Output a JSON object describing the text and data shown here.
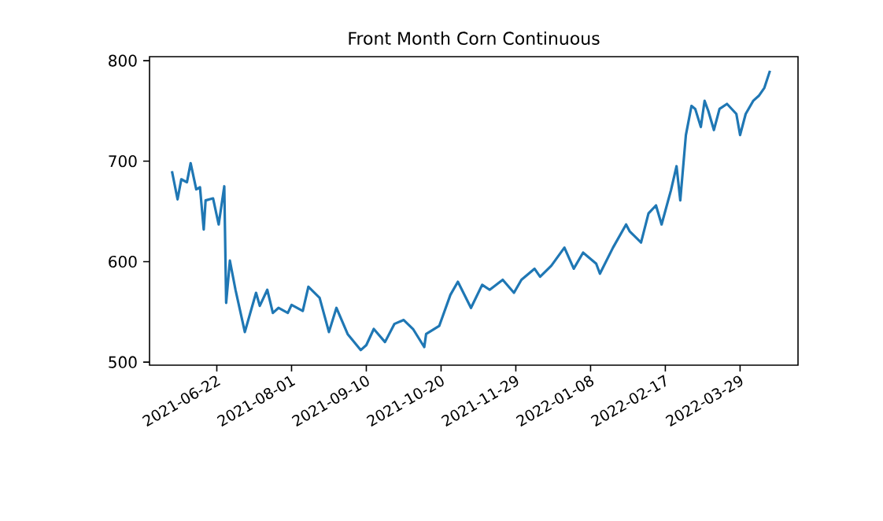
{
  "chart_data": {
    "type": "line",
    "title": "Front Month Corn Continuous",
    "x": [
      "2021-05-29",
      "2021-06-01",
      "2021-06-03",
      "2021-06-06",
      "2021-06-08",
      "2021-06-11",
      "2021-06-13",
      "2021-06-15",
      "2021-06-16",
      "2021-06-20",
      "2021-06-23",
      "2021-06-26",
      "2021-06-27",
      "2021-06-29",
      "2021-07-02",
      "2021-07-07",
      "2021-07-13",
      "2021-07-15",
      "2021-07-19",
      "2021-07-22",
      "2021-07-25",
      "2021-07-30",
      "2021-08-01",
      "2021-08-07",
      "2021-08-10",
      "2021-08-16",
      "2021-08-21",
      "2021-08-25",
      "2021-08-31",
      "2021-09-07",
      "2021-09-10",
      "2021-09-14",
      "2021-09-20",
      "2021-09-25",
      "2021-09-30",
      "2021-10-05",
      "2021-10-11",
      "2021-10-12",
      "2021-10-19",
      "2021-10-25",
      "2021-10-29",
      "2021-11-05",
      "2021-11-11",
      "2021-11-15",
      "2021-11-22",
      "2021-11-28",
      "2021-12-02",
      "2021-12-09",
      "2021-12-12",
      "2021-12-18",
      "2021-12-25",
      "2021-12-30",
      "2022-01-04",
      "2022-01-11",
      "2022-01-13",
      "2022-01-20",
      "2022-01-27",
      "2022-01-29",
      "2022-02-04",
      "2022-02-08",
      "2022-02-12",
      "2022-02-15",
      "2022-02-20",
      "2022-02-23",
      "2022-02-25",
      "2022-02-28",
      "2022-03-03",
      "2022-03-05",
      "2022-03-08",
      "2022-03-10",
      "2022-03-12",
      "2022-03-15",
      "2022-03-18",
      "2022-03-22",
      "2022-03-27",
      "2022-03-29",
      "2022-04-01",
      "2022-04-05",
      "2022-04-08",
      "2022-04-11",
      "2022-04-14"
    ],
    "series": [
      {
        "color": "#1f77b4",
        "values": [
          690,
          662,
          682,
          679,
          698,
          672,
          674,
          632,
          661,
          663,
          637,
          675,
          559,
          601,
          572,
          530,
          569,
          556,
          572,
          549,
          554,
          549,
          557,
          551,
          575,
          564,
          530,
          554,
          528,
          512,
          517,
          533,
          520,
          538,
          542,
          533,
          515,
          528,
          536,
          567,
          580,
          554,
          577,
          572,
          582,
          569,
          582,
          593,
          585,
          596,
          614,
          593,
          609,
          598,
          588,
          614,
          637,
          630,
          619,
          648,
          656,
          637,
          671,
          695,
          661,
          726,
          755,
          752,
          734,
          760,
          750,
          731,
          752,
          757,
          747,
          726,
          747,
          760,
          765,
          773,
          790
        ]
      }
    ],
    "xlim": [
      "2021-05-17",
      "2022-04-29"
    ],
    "xticks": [
      "2021-06-22",
      "2021-08-01",
      "2021-09-10",
      "2021-10-20",
      "2021-11-29",
      "2022-01-08",
      "2022-02-17",
      "2022-03-29"
    ],
    "ylim": [
      497,
      804
    ],
    "yticks": [
      500,
      600,
      700,
      800
    ],
    "grid": false,
    "line_style": "solid",
    "marker": "none"
  }
}
